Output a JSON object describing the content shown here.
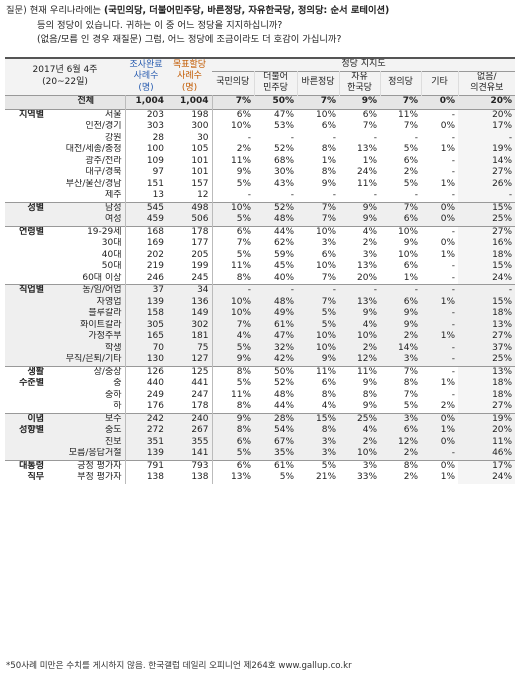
{
  "question": {
    "tag": "질문)",
    "line1_prefix": "현재 우리나라에는 ",
    "line1_bold": "(국민의당, 더불어민주당, 바른정당, 자유한국당, 정의당: 순서 로테이션)",
    "line2": "등의 정당이 있습니다. 귀하는 이 중 어느 정당을 지지하십니까?",
    "line3": "(없음/모름 인 경우 재질문) 그럼, 어느 정당에 조금이라도 더 호감이 가십니까?"
  },
  "header": {
    "date_line1": "2017년 6월 4주",
    "date_line2": "(20~22일)",
    "surveyed_l1": "조사완료",
    "surveyed_l2": "사례수",
    "surveyed_l3": "(명)",
    "target_l1": "목표할당",
    "target_l2": "사례수",
    "target_l3": "(명)",
    "group_label": "정당 지지도",
    "parties": [
      {
        "l1": "국민의당",
        "l2": ""
      },
      {
        "l1": "더불어",
        "l2": "민주당"
      },
      {
        "l1": "바른정당",
        "l2": ""
      },
      {
        "l1": "자유",
        "l2": "한국당"
      },
      {
        "l1": "정의당",
        "l2": ""
      },
      {
        "l1": "기타",
        "l2": ""
      },
      {
        "l1": "없음/",
        "l2": "의견유보"
      }
    ]
  },
  "rows": [
    {
      "g": "",
      "s": "전체",
      "v": [
        "1,004",
        "1,004",
        "7%",
        "50%",
        "7%",
        "9%",
        "7%",
        "0%",
        "20%"
      ]
    },
    {
      "g": "지역별",
      "s": "서울",
      "v": [
        "203",
        "198",
        "6%",
        "47%",
        "10%",
        "6%",
        "11%",
        "-",
        "20%"
      ]
    },
    {
      "g": "",
      "s": "인천/경기",
      "v": [
        "303",
        "300",
        "10%",
        "53%",
        "6%",
        "7%",
        "7%",
        "0%",
        "17%"
      ]
    },
    {
      "g": "",
      "s": "강원",
      "v": [
        "28",
        "30",
        "-",
        "-",
        "-",
        "-",
        "-",
        "-",
        "-"
      ]
    },
    {
      "g": "",
      "s": "대전/세종/충청",
      "v": [
        "100",
        "105",
        "2%",
        "52%",
        "8%",
        "13%",
        "5%",
        "1%",
        "19%"
      ]
    },
    {
      "g": "",
      "s": "광주/전라",
      "v": [
        "109",
        "101",
        "11%",
        "68%",
        "1%",
        "1%",
        "6%",
        "-",
        "14%"
      ]
    },
    {
      "g": "",
      "s": "대구/경북",
      "v": [
        "97",
        "101",
        "9%",
        "30%",
        "8%",
        "24%",
        "2%",
        "-",
        "27%"
      ]
    },
    {
      "g": "",
      "s": "부산/울산/경남",
      "v": [
        "151",
        "157",
        "5%",
        "43%",
        "9%",
        "11%",
        "5%",
        "1%",
        "26%"
      ]
    },
    {
      "g": "",
      "s": "제주",
      "v": [
        "13",
        "12",
        "-",
        "-",
        "-",
        "-",
        "-",
        "-",
        "-"
      ]
    },
    {
      "g": "성별",
      "s": "남성",
      "v": [
        "545",
        "498",
        "10%",
        "52%",
        "7%",
        "9%",
        "7%",
        "0%",
        "15%"
      ]
    },
    {
      "g": "",
      "s": "여성",
      "v": [
        "459",
        "506",
        "5%",
        "48%",
        "7%",
        "9%",
        "6%",
        "0%",
        "25%"
      ]
    },
    {
      "g": "연령별",
      "s": "19-29세",
      "v": [
        "168",
        "178",
        "6%",
        "44%",
        "10%",
        "4%",
        "10%",
        "-",
        "27%"
      ]
    },
    {
      "g": "",
      "s": "30대",
      "v": [
        "169",
        "177",
        "7%",
        "62%",
        "3%",
        "2%",
        "9%",
        "0%",
        "16%"
      ]
    },
    {
      "g": "",
      "s": "40대",
      "v": [
        "202",
        "205",
        "5%",
        "59%",
        "6%",
        "3%",
        "10%",
        "1%",
        "18%"
      ]
    },
    {
      "g": "",
      "s": "50대",
      "v": [
        "219",
        "199",
        "11%",
        "45%",
        "10%",
        "13%",
        "6%",
        "-",
        "15%"
      ]
    },
    {
      "g": "",
      "s": "60대 이상",
      "v": [
        "246",
        "245",
        "8%",
        "40%",
        "7%",
        "20%",
        "1%",
        "-",
        "24%"
      ]
    },
    {
      "g": "직업별",
      "s": "농/임/어업",
      "v": [
        "37",
        "34",
        "-",
        "-",
        "-",
        "-",
        "-",
        "-",
        "-"
      ]
    },
    {
      "g": "",
      "s": "자영업",
      "v": [
        "139",
        "136",
        "10%",
        "48%",
        "7%",
        "13%",
        "6%",
        "1%",
        "15%"
      ]
    },
    {
      "g": "",
      "s": "블루칼라",
      "v": [
        "158",
        "149",
        "10%",
        "49%",
        "5%",
        "9%",
        "9%",
        "-",
        "18%"
      ]
    },
    {
      "g": "",
      "s": "화이트칼라",
      "v": [
        "305",
        "302",
        "7%",
        "61%",
        "5%",
        "4%",
        "9%",
        "-",
        "13%"
      ]
    },
    {
      "g": "",
      "s": "가정주부",
      "v": [
        "165",
        "181",
        "4%",
        "47%",
        "10%",
        "10%",
        "2%",
        "1%",
        "27%"
      ]
    },
    {
      "g": "",
      "s": "학생",
      "v": [
        "70",
        "75",
        "5%",
        "32%",
        "10%",
        "2%",
        "14%",
        "-",
        "37%"
      ]
    },
    {
      "g": "",
      "s": "무직/은퇴/기타",
      "v": [
        "130",
        "127",
        "9%",
        "42%",
        "9%",
        "12%",
        "3%",
        "-",
        "25%"
      ]
    },
    {
      "g": "생활",
      "s": "상/중상",
      "v": [
        "126",
        "125",
        "8%",
        "50%",
        "11%",
        "11%",
        "7%",
        "-",
        "13%"
      ]
    },
    {
      "g": "수준별",
      "s": "중",
      "v": [
        "440",
        "441",
        "5%",
        "52%",
        "6%",
        "9%",
        "8%",
        "1%",
        "18%"
      ]
    },
    {
      "g": "",
      "s": "중하",
      "v": [
        "249",
        "247",
        "11%",
        "48%",
        "8%",
        "8%",
        "7%",
        "-",
        "18%"
      ]
    },
    {
      "g": "",
      "s": "하",
      "v": [
        "176",
        "178",
        "8%",
        "44%",
        "4%",
        "9%",
        "5%",
        "2%",
        "27%"
      ]
    },
    {
      "g": "이념",
      "s": "보수",
      "v": [
        "242",
        "240",
        "9%",
        "28%",
        "15%",
        "25%",
        "3%",
        "0%",
        "19%"
      ]
    },
    {
      "g": "성향별",
      "s": "중도",
      "v": [
        "272",
        "267",
        "8%",
        "54%",
        "8%",
        "4%",
        "6%",
        "1%",
        "20%"
      ]
    },
    {
      "g": "",
      "s": "진보",
      "v": [
        "351",
        "355",
        "6%",
        "67%",
        "3%",
        "2%",
        "12%",
        "0%",
        "11%"
      ]
    },
    {
      "g": "",
      "s": "모름/응답거절",
      "v": [
        "139",
        "141",
        "5%",
        "35%",
        "3%",
        "10%",
        "2%",
        "-",
        "46%"
      ]
    },
    {
      "g": "대통령",
      "s": "긍정 평가자",
      "v": [
        "791",
        "793",
        "6%",
        "61%",
        "5%",
        "3%",
        "8%",
        "0%",
        "17%"
      ]
    },
    {
      "g": "직무",
      "s": "부정 평가자",
      "v": [
        "138",
        "138",
        "13%",
        "5%",
        "21%",
        "33%",
        "2%",
        "1%",
        "24%"
      ]
    }
  ],
  "footnote": "*50사례 미만은 수치를 게시하지 않음. 한국갤럽 데일리 오피니언 제264호 www.gallup.co.kr"
}
